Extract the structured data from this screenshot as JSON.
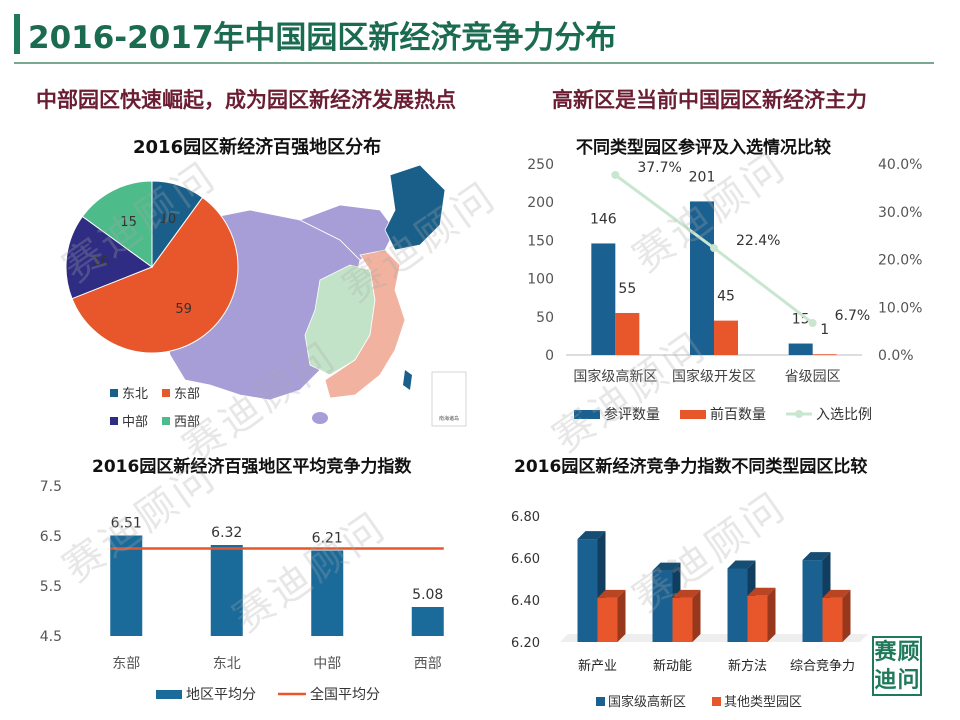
{
  "page": {
    "title": "2016-2017年中国园区新经济竞争力分布",
    "headline_left": "中部园区快速崛起，成为园区新经济发展热点",
    "headline_right": "高新区是当前中国园区新经济主力",
    "watermark": "赛迪顾问",
    "logo_chars": [
      "赛",
      "顾",
      "迪",
      "问"
    ],
    "map_inset_label": "南海诸岛",
    "colors": {
      "title": "#1a6b4f",
      "headline": "#6b1e33",
      "accent": "#1f7a5c"
    }
  },
  "chart_data": [
    {
      "id": "pie",
      "type": "pie",
      "title": "2016园区新经济百强地区分布",
      "categories": [
        "东北",
        "东部",
        "中部",
        "西部"
      ],
      "values": [
        10,
        59,
        16,
        15
      ],
      "colors": [
        "#1a5f8a",
        "#e8562b",
        "#2e2d83",
        "#4dbb8a"
      ],
      "legend": [
        "东北",
        "东部",
        "中部",
        "西部"
      ],
      "legend_position": "bottom"
    },
    {
      "id": "combo1",
      "type": "bar",
      "title": "不同类型园区参评及入选情况比较",
      "categories": [
        "国家级高新区",
        "国家级开发区",
        "省级园区"
      ],
      "series": [
        {
          "name": "参评数量",
          "values": [
            146,
            201,
            15
          ],
          "color": "#1a6090"
        },
        {
          "name": "前百数量",
          "values": [
            55,
            45,
            1
          ],
          "color": "#e8562b"
        }
      ],
      "line_series": {
        "name": "入选比例",
        "values": [
          37.7,
          22.4,
          6.7
        ],
        "labels": [
          "37.7%",
          "22.4%",
          "6.7%"
        ],
        "color": "#c8e6d0"
      },
      "ylim": [
        0,
        250
      ],
      "yticks": [
        "0",
        "50",
        "100",
        "150",
        "200",
        "250"
      ],
      "y2lim": [
        0,
        40
      ],
      "y2ticks": [
        "0.0%",
        "10.0%",
        "20.0%",
        "30.0%",
        "40.0%"
      ],
      "legend_position": "bottom"
    },
    {
      "id": "bar2",
      "type": "bar",
      "title": "2016园区新经济百强地区平均竞争力指数",
      "categories": [
        "东部",
        "东北",
        "中部",
        "西部"
      ],
      "series": [
        {
          "name": "地区平均分",
          "values": [
            6.51,
            6.32,
            6.21,
            5.08
          ],
          "color": "#1a6a9a"
        }
      ],
      "reference_line": {
        "name": "全国平均分",
        "value": 6.25,
        "color": "#e8562b"
      },
      "ylim": [
        4.5,
        7.5
      ],
      "yticks": [
        "4.5",
        "5.5",
        "6.5",
        "7.5"
      ],
      "legend_position": "bottom"
    },
    {
      "id": "bar3d",
      "type": "bar",
      "title": "2016园区新经济竞争力指数不同类型园区比较",
      "categories": [
        "新产业",
        "新动能",
        "新方法",
        "综合竞争力"
      ],
      "series": [
        {
          "name": "国家级高新区",
          "values": [
            6.69,
            6.54,
            6.55,
            6.59
          ],
          "color": "#1a6090"
        },
        {
          "name": "其他类型园区",
          "values": [
            6.41,
            6.41,
            6.42,
            6.41
          ],
          "color": "#e8562b"
        }
      ],
      "ylim": [
        6.2,
        6.8
      ],
      "yticks": [
        "6.20",
        "6.40",
        "6.60",
        "6.80"
      ],
      "legend_position": "bottom"
    }
  ]
}
